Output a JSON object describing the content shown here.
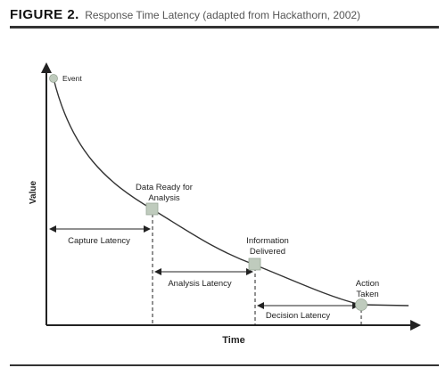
{
  "figure": {
    "label": "FIGURE 2.",
    "caption": "Response Time Latency (adapted from Hackathorn, 2002)"
  },
  "axes": {
    "y_label": "Value",
    "x_label": "Time"
  },
  "points": {
    "event": "Event",
    "data_ready": [
      "Data Ready for",
      "Analysis"
    ],
    "info_delivered": [
      "Information",
      "Delivered"
    ],
    "action_taken": [
      "Action",
      "Taken"
    ]
  },
  "latencies": {
    "capture": "Capture Latency",
    "analysis": "Analysis Latency",
    "decision": "Decision Latency"
  },
  "colors": {
    "marker_fill": "#bfcbbd",
    "marker_stroke": "#9aa898",
    "line": "#222222",
    "curve": "#333333"
  }
}
